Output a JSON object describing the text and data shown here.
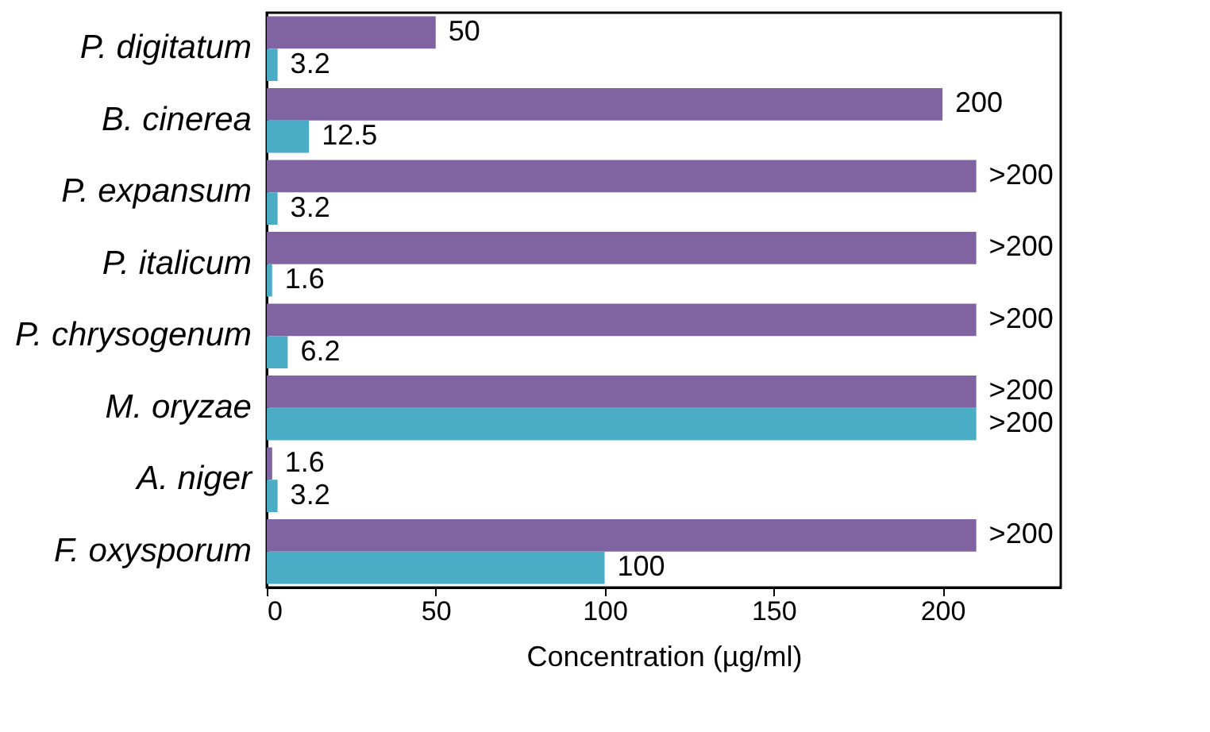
{
  "chart_data": {
    "type": "bar",
    "orientation": "horizontal",
    "xlabel": "Concentration (µg/ml)",
    "categories": [
      "P. digitatum",
      "B. cinerea",
      "P. expansum",
      "P. italicum",
      "P. chrysogenum",
      "M. oryzae",
      "A. niger",
      "F. oxysporum"
    ],
    "series": [
      {
        "color": "#8064a2",
        "values": [
          50,
          200,
          210,
          210,
          210,
          210,
          1.6,
          210
        ],
        "value_labels": [
          "50",
          "200",
          ">200",
          ">200",
          ">200",
          ">200",
          "1.6",
          ">200"
        ]
      },
      {
        "color": "#4bacc6",
        "values": [
          3.2,
          12.5,
          3.2,
          1.6,
          6.2,
          210,
          3.2,
          100
        ],
        "value_labels": [
          "3.2",
          "12.5",
          "3.2",
          "1.6",
          "6.2",
          ">200",
          "3.2",
          "100"
        ]
      }
    ],
    "xlim": [
      0,
      235
    ],
    "xticks": [
      0,
      50,
      100,
      150,
      200
    ]
  }
}
